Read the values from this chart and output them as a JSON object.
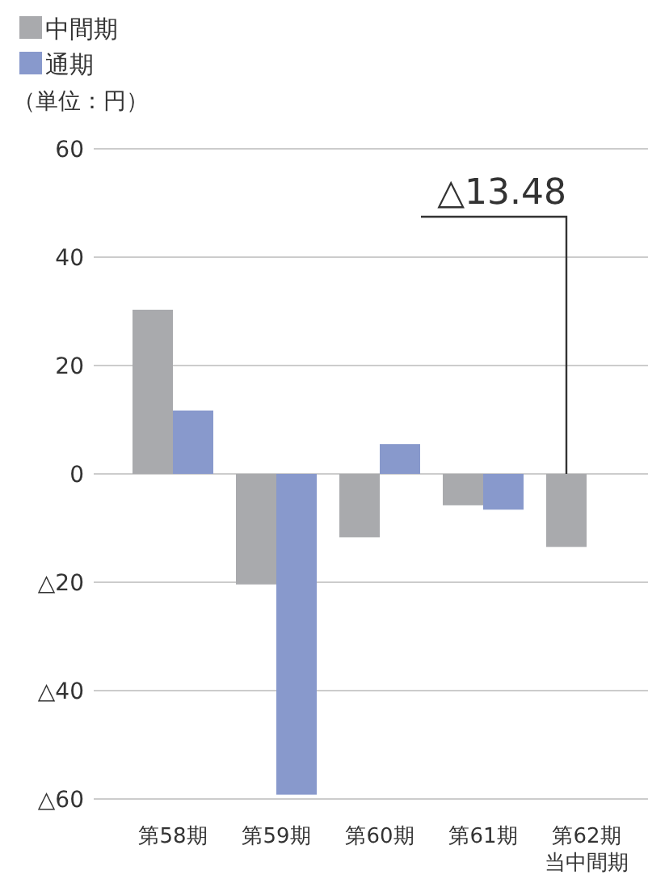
{
  "chart_data": {
    "type": "bar",
    "ylabel": "（単位：円）",
    "categories": [
      "第58期",
      "第59期",
      "第60期",
      "第61期",
      "第62期当中間期"
    ],
    "series": [
      {
        "name": "中間期",
        "color": "#a9aaad",
        "values": [
          30.3,
          -20.4,
          -11.7,
          -5.8,
          -13.48
        ]
      },
      {
        "name": "通期",
        "color": "#8899cc",
        "values": [
          11.7,
          -59.2,
          5.5,
          -6.6,
          null
        ]
      }
    ],
    "ylim": [
      -60,
      60
    ],
    "yticks": [
      {
        "value": -60,
        "label": "△60"
      },
      {
        "value": -40,
        "label": "△40"
      },
      {
        "value": -20,
        "label": "△20"
      },
      0,
      20,
      40,
      60
    ],
    "grid": "y",
    "legend": "top left",
    "annotations": [
      "△13.48"
    ]
  }
}
